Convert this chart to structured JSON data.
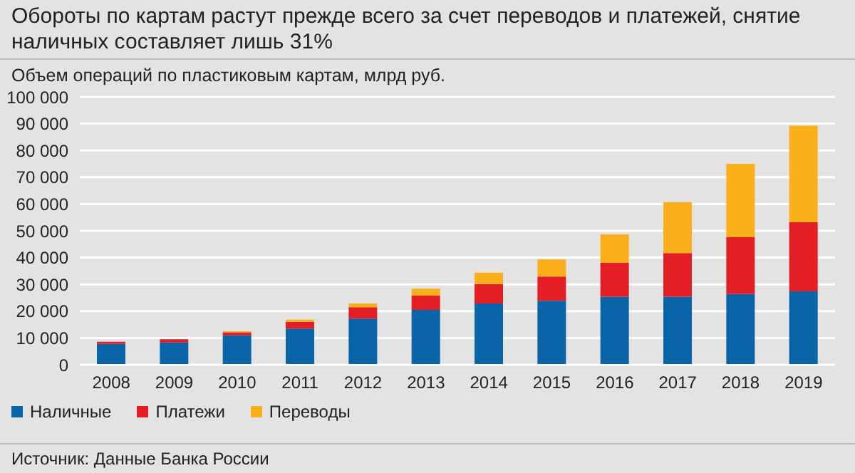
{
  "chart_data": {
    "type": "bar",
    "stacked": true,
    "title": "Обороты по картам растут прежде всего за счет переводов и платежей, снятие наличных составляет лишь 31%",
    "subtitle": "Объем операций по пластиковым картам, млрд руб.",
    "categories": [
      "2008",
      "2009",
      "2010",
      "2011",
      "2012",
      "2013",
      "2014",
      "2015",
      "2016",
      "2017",
      "2018",
      "2019"
    ],
    "series": [
      {
        "name": "Наличные",
        "color": "#0a64a8",
        "values": [
          7800,
          8300,
          11000,
          13500,
          17200,
          20500,
          22900,
          23900,
          25400,
          25400,
          26400,
          27400
        ]
      },
      {
        "name": "Платежи",
        "color": "#e31e24",
        "values": [
          800,
          1200,
          1100,
          2500,
          4300,
          5300,
          7200,
          9000,
          12600,
          16300,
          21200,
          25800
        ]
      },
      {
        "name": "Переводы",
        "color": "#f9b01b",
        "values": [
          0,
          0,
          400,
          800,
          1400,
          2600,
          4300,
          6400,
          10700,
          19000,
          27400,
          36000
        ]
      }
    ],
    "ylim": [
      0,
      100000
    ],
    "yticks": [
      {
        "value": 0,
        "label": "0"
      },
      {
        "value": 10000,
        "label": "10 000"
      },
      {
        "value": 20000,
        "label": "20 000"
      },
      {
        "value": 30000,
        "label": "30 000"
      },
      {
        "value": 40000,
        "label": "40 000"
      },
      {
        "value": 50000,
        "label": "50 000"
      },
      {
        "value": 60000,
        "label": "60 000"
      },
      {
        "value": 70000,
        "label": "70 000"
      },
      {
        "value": 80000,
        "label": "80 000"
      },
      {
        "value": 90000,
        "label": "90 000"
      },
      {
        "value": 100000,
        "label": "100 000"
      }
    ],
    "grid": "y",
    "legend": "bottom",
    "annotations": [
      "Источник: Данные Банка России"
    ]
  }
}
